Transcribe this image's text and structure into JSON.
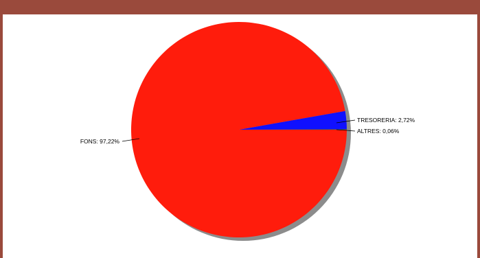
{
  "colors": {
    "frame": "#9a4a3c",
    "shadow": "#8c8c8c"
  },
  "chart_data": {
    "type": "pie",
    "title": "",
    "slices": [
      {
        "label": "FONS",
        "value": 97.22,
        "display": "97,22%",
        "color": "#ff1c0c"
      },
      {
        "label": "TRESORERIA",
        "value": 2.72,
        "display": "2,72%",
        "color": "#1010ff"
      },
      {
        "label": "ALTRES",
        "value": 0.06,
        "display": "0,06%",
        "color": "#2a8a2a"
      }
    ],
    "labels": [
      {
        "text": "FONS: 97,22%"
      },
      {
        "text": "TRESORERIA: 2,72%"
      },
      {
        "text": "ALTRES: 0,06%"
      }
    ],
    "legend": "none",
    "grid": false,
    "shadow": true
  }
}
